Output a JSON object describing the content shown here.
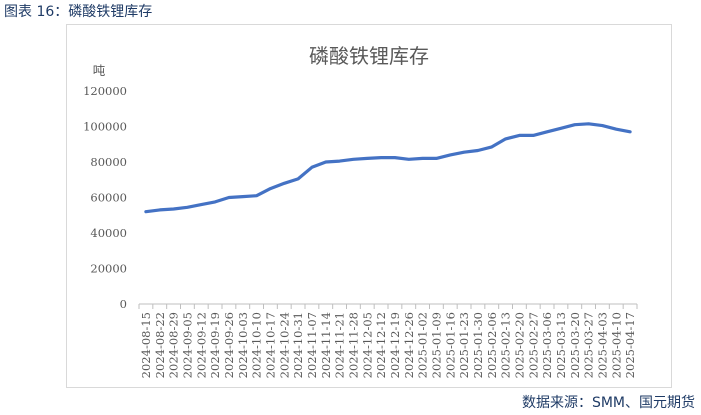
{
  "caption": "图表 16：磷酸铁锂库存",
  "source": "数据来源：SMM、国元期货",
  "colors": {
    "series": "#4472c4",
    "axis": "#bfbfbf",
    "text": "#595959",
    "caption": "#1f3b66"
  },
  "chart_data": {
    "type": "line",
    "title": "磷酸铁锂库存",
    "ylabel": "吨",
    "xlabel": "",
    "ylim": [
      0,
      120000
    ],
    "yticks": [
      0,
      20000,
      40000,
      60000,
      80000,
      100000,
      120000
    ],
    "grid": false,
    "legend": "none",
    "x": [
      "2024-08-15",
      "2024-08-22",
      "2024-08-29",
      "2024-09-05",
      "2024-09-12",
      "2024-09-19",
      "2024-09-26",
      "2024-10-03",
      "2024-10-10",
      "2024-10-17",
      "2024-10-24",
      "2024-10-31",
      "2024-11-07",
      "2024-11-14",
      "2024-11-21",
      "2024-11-28",
      "2024-12-05",
      "2024-12-12",
      "2024-12-19",
      "2024-12-26",
      "2025-01-02",
      "2025-01-09",
      "2025-01-16",
      "2025-01-23",
      "2025-01-30",
      "2025-02-06",
      "2025-02-13",
      "2025-02-20",
      "2025-02-27",
      "2025-03-06",
      "2025-03-13",
      "2025-03-20",
      "2025-03-27",
      "2025-04-03",
      "2025-04-10",
      "2025-04-17"
    ],
    "series": [
      {
        "name": "",
        "values": [
          52000,
          53000,
          53500,
          54500,
          56000,
          57500,
          60000,
          60500,
          61000,
          65000,
          68000,
          70500,
          77000,
          80000,
          80500,
          81500,
          82000,
          82500,
          82500,
          81500,
          82000,
          82000,
          84000,
          85500,
          86500,
          88500,
          93000,
          95000,
          95000,
          97000,
          99000,
          101000,
          101500,
          100500,
          98500,
          97000
        ]
      }
    ]
  }
}
